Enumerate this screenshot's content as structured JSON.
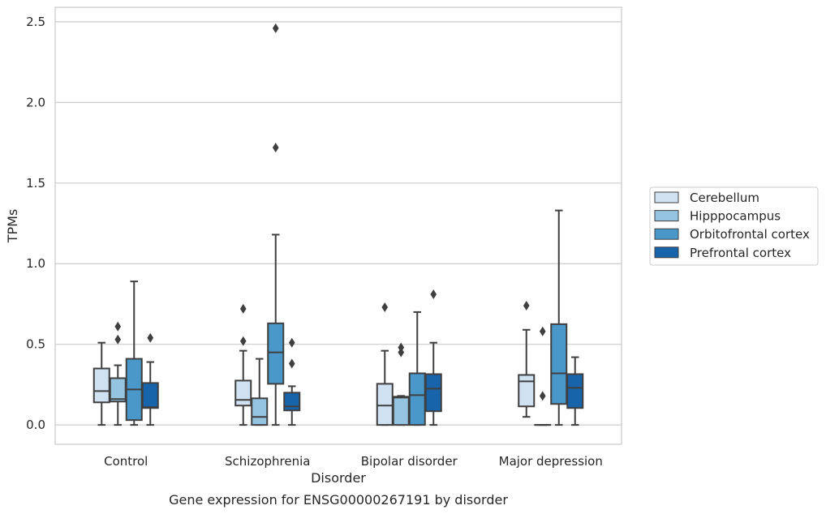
{
  "chart_data": {
    "type": "boxplot",
    "caption": "Gene expression for ENSG00000267191 by disorder",
    "xlabel": "Disorder",
    "ylabel": "TPMs",
    "ylim": [
      -0.12,
      2.59
    ],
    "yticks": [
      0.0,
      0.5,
      1.0,
      1.5,
      2.0,
      2.5
    ],
    "ytick_labels": [
      "0.0",
      "0.5",
      "1.0",
      "1.5",
      "2.0",
      "2.5"
    ],
    "grid": "horizontal",
    "legend_position": "right",
    "categories": [
      "Control",
      "Schizophrenia",
      "Bipolar disorder",
      "Major depression"
    ],
    "series": [
      {
        "name": "Cerebellum",
        "color": "#d0e1f2",
        "boxes": [
          {
            "whisker_low": 0.0,
            "q1": 0.14,
            "median": 0.21,
            "q3": 0.35,
            "whisker_high": 0.51,
            "outliers": []
          },
          {
            "whisker_low": 0.0,
            "q1": 0.12,
            "median": 0.155,
            "q3": 0.275,
            "whisker_high": 0.46,
            "outliers": [
              0.52,
              0.72
            ]
          },
          {
            "whisker_low": 0.0,
            "q1": 0.0,
            "median": 0.12,
            "q3": 0.255,
            "whisker_high": 0.46,
            "outliers": [
              0.73
            ]
          },
          {
            "whisker_low": 0.05,
            "q1": 0.115,
            "median": 0.27,
            "q3": 0.31,
            "whisker_high": 0.59,
            "outliers": [
              0.74
            ]
          }
        ]
      },
      {
        "name": "Hipppocampus",
        "color": "#94c4df",
        "boxes": [
          {
            "whisker_low": 0.0,
            "q1": 0.145,
            "median": 0.16,
            "q3": 0.29,
            "whisker_high": 0.37,
            "outliers": [
              0.53,
              0.61
            ]
          },
          {
            "whisker_low": 0.0,
            "q1": 0.0,
            "median": 0.05,
            "q3": 0.165,
            "whisker_high": 0.41,
            "outliers": []
          },
          {
            "whisker_low": 0.0,
            "q1": 0.0,
            "median": 0.17,
            "q3": 0.175,
            "whisker_high": 0.18,
            "outliers": [
              0.45,
              0.48
            ]
          },
          {
            "whisker_low": 0.0,
            "q1": 0.0,
            "median": 0.0,
            "q3": 0.0,
            "whisker_high": 0.0,
            "outliers": [
              0.18,
              0.58
            ]
          }
        ]
      },
      {
        "name": "Orbitofrontal cortex",
        "color": "#4a98c9",
        "boxes": [
          {
            "whisker_low": 0.0,
            "q1": 0.03,
            "median": 0.22,
            "q3": 0.41,
            "whisker_high": 0.89,
            "outliers": []
          },
          {
            "whisker_low": 0.0,
            "q1": 0.255,
            "median": 0.45,
            "q3": 0.63,
            "whisker_high": 1.18,
            "outliers": [
              1.72,
              2.46
            ]
          },
          {
            "whisker_low": 0.0,
            "q1": 0.0,
            "median": 0.185,
            "q3": 0.32,
            "whisker_high": 0.7,
            "outliers": []
          },
          {
            "whisker_low": 0.0,
            "q1": 0.13,
            "median": 0.32,
            "q3": 0.625,
            "whisker_high": 1.33,
            "outliers": []
          }
        ]
      },
      {
        "name": "Prefrontal cortex",
        "color": "#1764ab",
        "boxes": [
          {
            "whisker_low": 0.0,
            "q1": 0.105,
            "median": 0.11,
            "q3": 0.26,
            "whisker_high": 0.39,
            "outliers": [
              0.54
            ]
          },
          {
            "whisker_low": 0.0,
            "q1": 0.09,
            "median": 0.115,
            "q3": 0.2,
            "whisker_high": 0.24,
            "outliers": [
              0.38,
              0.51
            ]
          },
          {
            "whisker_low": 0.0,
            "q1": 0.085,
            "median": 0.225,
            "q3": 0.315,
            "whisker_high": 0.51,
            "outliers": [
              0.81
            ]
          },
          {
            "whisker_low": 0.0,
            "q1": 0.105,
            "median": 0.23,
            "q3": 0.315,
            "whisker_high": 0.42,
            "outliers": []
          }
        ]
      }
    ]
  }
}
